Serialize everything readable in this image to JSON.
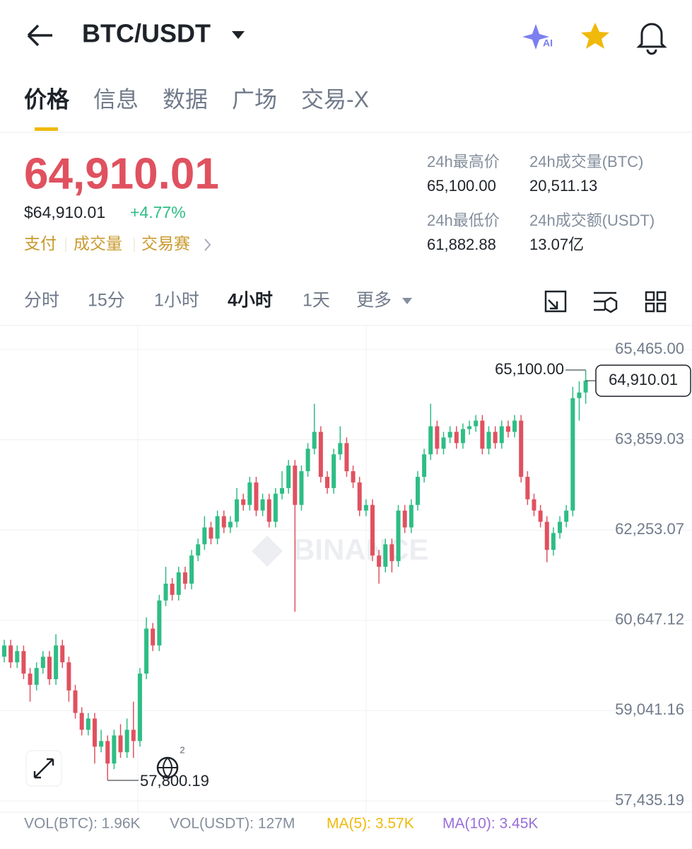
{
  "header": {
    "title": "BTC/USDT"
  },
  "tabs": [
    "价格",
    "信息",
    "数据",
    "广场",
    "交易-X"
  ],
  "ticker": {
    "price": "64,910.01",
    "usd_price": "$64,910.01",
    "change": "+4.77%",
    "links": [
      "支付",
      "成交量",
      "交易赛"
    ],
    "stats": [
      {
        "label": "24h最高价",
        "value": "65,100.00"
      },
      {
        "label": "24h成交量(BTC)",
        "value": "20,511.13"
      },
      {
        "label": "24h最低价",
        "value": "61,882.88"
      },
      {
        "label": "24h成交额(USDT)",
        "value": "13.07亿"
      }
    ]
  },
  "intervals": [
    "分时",
    "15分",
    "1小时",
    "4小时",
    "1天",
    "更多"
  ],
  "badge": "2",
  "chart_data": {
    "type": "candlestick",
    "watermark": "BINANCE",
    "up_color": "#2ebd85",
    "down_color": "#e0515f",
    "grid": true,
    "open": [
      60000,
      60200,
      59900,
      60100,
      59700,
      59500,
      59800,
      60000,
      59600,
      60200,
      59900,
      59400,
      59000,
      58700,
      58900,
      58400,
      58500,
      58100,
      58600,
      58300,
      58700,
      58500,
      59700,
      60500,
      60200,
      61000,
      61300,
      61100,
      61500,
      61300,
      61800,
      62000,
      62300,
      62100,
      62500,
      62300,
      62400,
      62800,
      62700,
      63100,
      62600,
      62800,
      62400,
      62900,
      63000,
      63400,
      62700,
      63300,
      63700,
      64000,
      63200,
      63000,
      63600,
      63800,
      63300,
      63100,
      62600,
      62700,
      61800,
      61600,
      62000,
      61700,
      62600,
      62300,
      62700,
      63200,
      63600,
      64100,
      63700,
      63900,
      64000,
      63800,
      64050,
      64100,
      64200,
      63700,
      64000,
      63800,
      64100,
      64000,
      64200,
      63200,
      62800,
      62600,
      62400,
      61900,
      62200,
      62400,
      62600,
      64600,
      64700
    ],
    "high": [
      60300,
      60300,
      60200,
      60200,
      59800,
      59900,
      60100,
      60100,
      60400,
      60300,
      60000,
      59500,
      59100,
      59000,
      59000,
      58700,
      58600,
      58700,
      58800,
      58900,
      59200,
      59800,
      60700,
      60600,
      61100,
      61600,
      61400,
      61600,
      61600,
      61900,
      62100,
      62500,
      62400,
      62600,
      62600,
      62500,
      63000,
      62900,
      63200,
      63200,
      62900,
      62900,
      63000,
      63300,
      63500,
      63500,
      63400,
      63800,
      64500,
      64100,
      63300,
      63700,
      64100,
      63900,
      63400,
      63200,
      62800,
      62800,
      61900,
      62100,
      62100,
      62700,
      62700,
      62800,
      63300,
      63700,
      64500,
      64200,
      64000,
      64100,
      64100,
      64150,
      64200,
      64300,
      64300,
      64100,
      64100,
      64200,
      64200,
      64300,
      64300,
      63300,
      62900,
      62700,
      62500,
      62300,
      62500,
      62700,
      64800,
      64900,
      65100
    ],
    "low": [
      59900,
      59800,
      59800,
      59600,
      59200,
      59400,
      59700,
      59500,
      59500,
      59800,
      59200,
      58900,
      58600,
      58600,
      58100,
      58300,
      57800.19,
      58000,
      58200,
      58200,
      58200,
      58400,
      59600,
      60100,
      60100,
      60900,
      61000,
      61000,
      61200,
      61200,
      61700,
      61900,
      62000,
      62000,
      62200,
      62200,
      62300,
      62600,
      62600,
      62500,
      62500,
      62300,
      62300,
      62800,
      62900,
      60800,
      62600,
      63200,
      63600,
      63100,
      62900,
      62900,
      63500,
      63200,
      63000,
      62500,
      62500,
      61700,
      61300,
      61500,
      61500,
      61600,
      62200,
      62200,
      62600,
      63100,
      63500,
      63600,
      63600,
      63800,
      63700,
      63700,
      63950,
      64000,
      63600,
      63600,
      63700,
      63700,
      63900,
      63900,
      63100,
      62700,
      62500,
      62300,
      61680,
      61800,
      62100,
      62300,
      62500,
      64200,
      64500
    ],
    "close": [
      60200,
      59900,
      60100,
      59700,
      59500,
      59800,
      60000,
      59600,
      60200,
      59900,
      59400,
      59000,
      58700,
      58900,
      58400,
      58500,
      58100,
      58600,
      58300,
      58700,
      58500,
      59700,
      60500,
      60200,
      61000,
      61300,
      61100,
      61500,
      61300,
      61800,
      62000,
      62300,
      62100,
      62500,
      62300,
      62400,
      62800,
      62700,
      63100,
      62600,
      62800,
      62400,
      62900,
      63000,
      63400,
      62700,
      63300,
      63700,
      64000,
      63200,
      63000,
      63600,
      63800,
      63300,
      63100,
      62600,
      62700,
      61800,
      61600,
      62000,
      61700,
      62600,
      62300,
      62700,
      63200,
      63600,
      64100,
      63700,
      63900,
      64000,
      63800,
      64050,
      64100,
      64200,
      63700,
      64000,
      63800,
      64100,
      64000,
      64200,
      63200,
      62800,
      62600,
      62400,
      61900,
      62200,
      62400,
      62600,
      64600,
      64700,
      64910.01
    ],
    "ylim": [
      57435.19,
      65465
    ],
    "yticks": [
      {
        "value": 65465,
        "label": "65,465.00"
      },
      {
        "value": 63859.03,
        "label": "63,859.03"
      },
      {
        "value": 62253.07,
        "label": "62,253.07"
      },
      {
        "value": 60647.12,
        "label": "60,647.12"
      },
      {
        "value": 59041.16,
        "label": "59,041.16"
      },
      {
        "value": 57435.19,
        "label": "57,435.19"
      }
    ],
    "last_price": {
      "value": 64910.01,
      "label": "64,910.01"
    },
    "high_marker": {
      "value": 65100,
      "label": "65,100.00"
    },
    "low_marker": {
      "value": 57800.19,
      "label": "57,800.19"
    }
  },
  "volume": {
    "vol_btc": "VOL(BTC): 1.96K",
    "vol_usdt": "VOL(USDT): 127M",
    "ma5": "MA(5): 3.57K",
    "ma10": "MA(10): 3.45K"
  }
}
